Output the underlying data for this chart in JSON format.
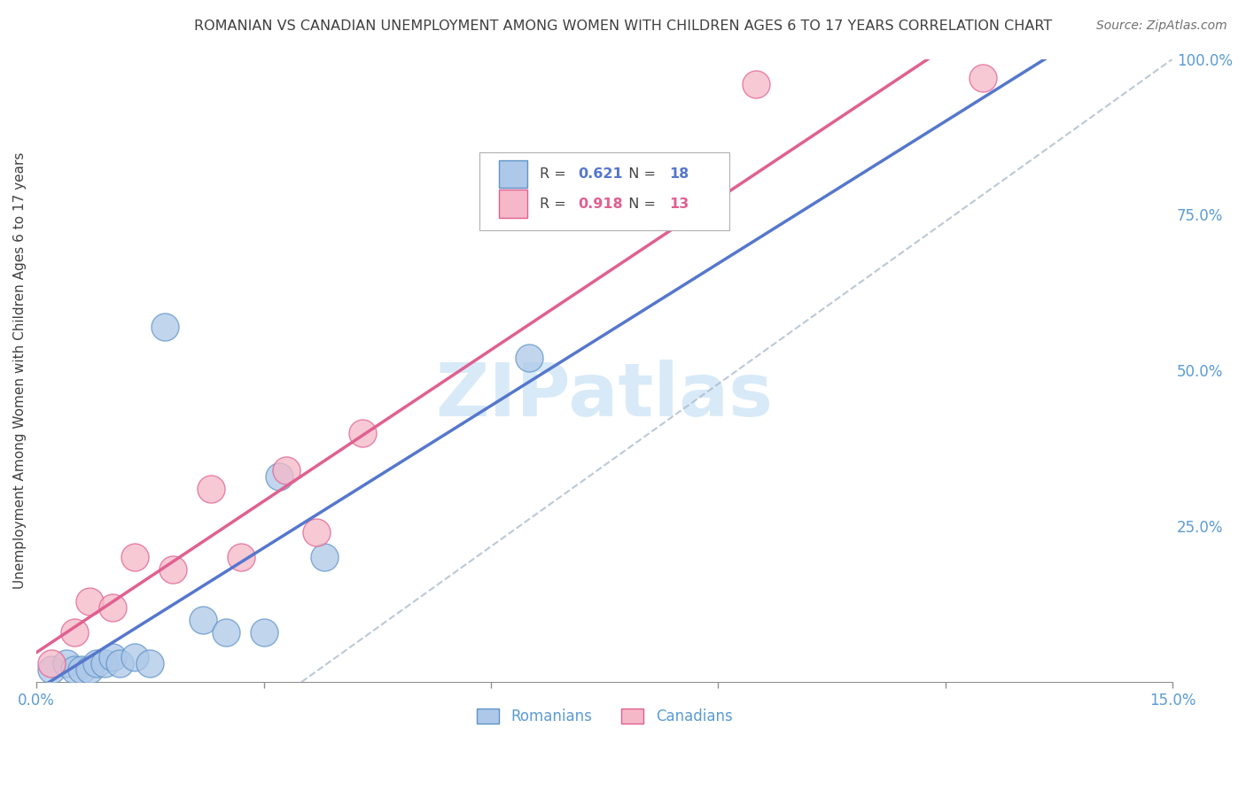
{
  "title": "ROMANIAN VS CANADIAN UNEMPLOYMENT AMONG WOMEN WITH CHILDREN AGES 6 TO 17 YEARS CORRELATION CHART",
  "source": "Source: ZipAtlas.com",
  "ylabel": "Unemployment Among Women with Children Ages 6 to 17 years",
  "xlim": [
    0,
    15.0
  ],
  "ylim": [
    0,
    100.0
  ],
  "romanians_x": [
    0.2,
    0.4,
    0.5,
    0.6,
    0.7,
    0.8,
    0.9,
    1.0,
    1.1,
    1.3,
    1.5,
    1.7,
    2.2,
    2.5,
    3.0,
    3.2,
    3.8,
    6.5
  ],
  "romanians_y": [
    2,
    3,
    2,
    2,
    2,
    3,
    3,
    4,
    3,
    4,
    3,
    57,
    10,
    8,
    8,
    33,
    20,
    52
  ],
  "canadians_x": [
    0.2,
    0.5,
    0.7,
    1.0,
    1.3,
    1.8,
    2.3,
    2.7,
    3.3,
    3.7,
    4.3,
    9.5,
    12.5
  ],
  "canadians_y": [
    3,
    8,
    13,
    12,
    20,
    18,
    31,
    20,
    34,
    24,
    40,
    96,
    97
  ],
  "romanian_R": 0.621,
  "romanian_N": 18,
  "canadian_R": 0.918,
  "canadian_N": 13,
  "blue_fill": "#adc8e8",
  "blue_edge": "#6094c8",
  "pink_fill": "#f5b8c8",
  "pink_edge": "#e06090",
  "blue_line": "#5577cc",
  "pink_line": "#e06090",
  "ref_line_color": "#aabbcc",
  "title_color": "#404040",
  "ylabel_color": "#404040",
  "tick_color": "#5b9bd5",
  "grid_color": "#c8c8c8",
  "watermark_text": "ZIPatlas",
  "watermark_color": "#d8eaf8",
  "bg_color": "#ffffff",
  "legend_box_edge": "#b0b0b0"
}
